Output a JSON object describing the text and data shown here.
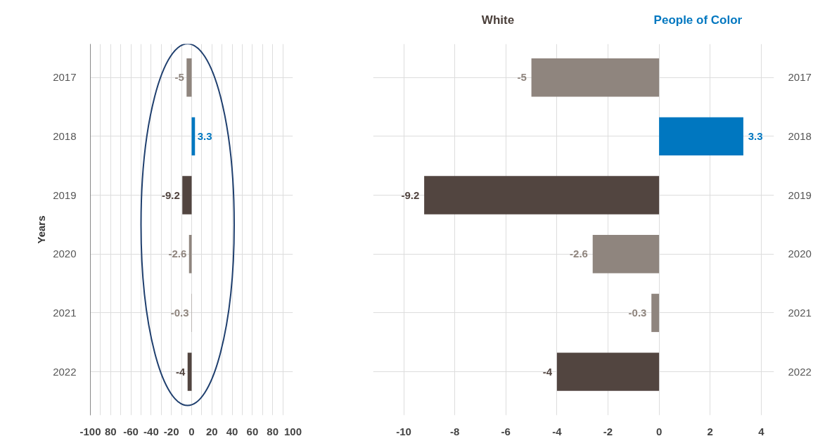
{
  "chart_data": [
    {
      "type": "bar",
      "orientation": "horizontal",
      "ylabel": "Years",
      "categories": [
        "2017",
        "2018",
        "2019",
        "2020",
        "2021",
        "2022"
      ],
      "values": [
        -5,
        3.3,
        -9.2,
        -2.6,
        -0.3,
        -4
      ],
      "colors": [
        "#8f857e",
        "#0077c0",
        "#524540",
        "#8f857e",
        "#8f857e",
        "#524540"
      ],
      "xlim": [
        -100,
        100
      ],
      "xticks": [
        -100,
        {
          "value": -90,
          "label": null
        },
        {
          "value": -80,
          "label": "80"
        },
        {
          "value": -70,
          "label": null
        },
        -60,
        {
          "value": -50,
          "label": null
        },
        -40,
        {
          "value": -30,
          "label": null
        },
        -20,
        {
          "value": -10,
          "label": null
        },
        0,
        {
          "value": 10,
          "label": null
        },
        20,
        {
          "value": 30,
          "label": null
        },
        40,
        {
          "value": 50,
          "label": null
        },
        60,
        {
          "value": 70,
          "label": null
        },
        80,
        {
          "value": 90,
          "label": null
        },
        100
      ],
      "grid": true,
      "data_labels": true
    },
    {
      "type": "bar",
      "orientation": "horizontal",
      "annotations": [
        "White",
        "People of Color"
      ],
      "categories": [
        "2017",
        "2018",
        "2019",
        "2020",
        "2021",
        "2022"
      ],
      "values": [
        -5,
        3.3,
        -9.2,
        -2.6,
        -0.3,
        -4
      ],
      "colors": [
        "#8f857e",
        "#0077c0",
        "#524540",
        "#8f857e",
        "#8f857e",
        "#524540"
      ],
      "xlim": [
        -11.2,
        4.5
      ],
      "xticks": [
        -10,
        -8,
        -6,
        -4,
        -2,
        0,
        2,
        4
      ],
      "grid": true,
      "data_labels": true
    }
  ]
}
